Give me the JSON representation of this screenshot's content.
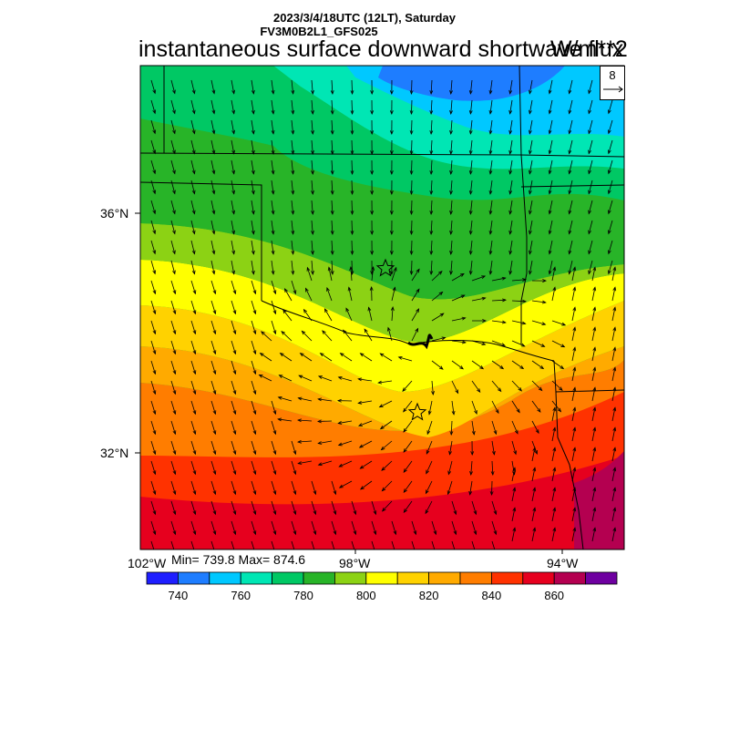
{
  "header": {
    "date_line": "2023/3/4/18UTC (12LT), Saturday",
    "model_line": "FV3M0B2L1_GFS025",
    "title": "instantaneous surface downward shortwave flux",
    "units": "W/m**2"
  },
  "axes": {
    "lat_labels": [
      "36°N",
      "32°N"
    ],
    "lon_labels": [
      "102°W",
      "98°W",
      "94°W"
    ]
  },
  "stats": {
    "text": "Min= 739.8 Max= 874.6"
  },
  "vector_reference": {
    "label": "8"
  },
  "markers": {
    "symbol": "star",
    "count": 2,
    "names": []
  },
  "colorbar": {
    "colors": [
      "#1e1eff",
      "#1e7dff",
      "#00c8ff",
      "#00e6b4",
      "#00c864",
      "#28b428",
      "#8cd214",
      "#ffff00",
      "#ffd200",
      "#ffaa00",
      "#ff7d00",
      "#ff3200",
      "#e6001e",
      "#b40050",
      "#6e00a0"
    ],
    "tick_labels": [
      "740",
      "760",
      "780",
      "800",
      "820",
      "840",
      "860"
    ]
  }
}
